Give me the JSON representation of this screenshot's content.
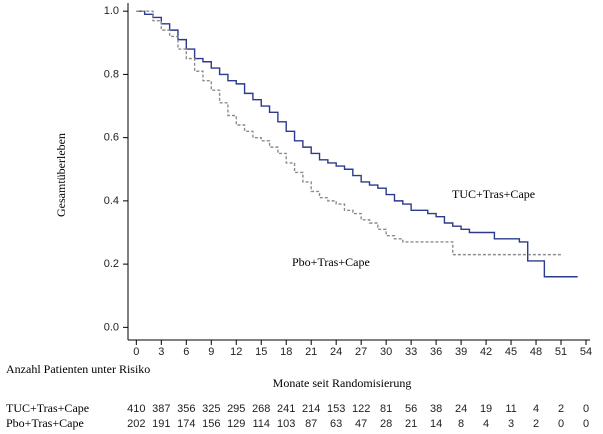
{
  "chart_data": {
    "type": "line",
    "step": true,
    "xlabel": "Monate seit Randomisierung",
    "ylabel": "Gesamtüberleben",
    "xlim": [
      -1,
      54
    ],
    "ylim": [
      -0.04,
      1.01
    ],
    "xticks": [
      0,
      3,
      6,
      9,
      12,
      15,
      18,
      21,
      24,
      27,
      30,
      33,
      36,
      39,
      42,
      45,
      48,
      51,
      54
    ],
    "yticks": [
      {
        "value": 1.0,
        "label": "1.0"
      },
      {
        "value": 0.8,
        "label": "0.8"
      },
      {
        "value": 0.6,
        "label": "0.6"
      },
      {
        "value": 0.4,
        "label": "0.4"
      },
      {
        "value": 0.2,
        "label": "0.2"
      },
      {
        "value": 0.0,
        "label": "0.0"
      }
    ],
    "series": [
      {
        "name": "TUC+Tras+Cape",
        "color": "#2b3a8c",
        "dash": "none",
        "x": [
          0,
          1,
          2,
          3,
          4,
          5,
          6,
          7,
          8,
          9,
          10,
          11,
          12,
          13,
          14,
          15,
          16,
          17,
          18,
          19,
          20,
          21,
          22,
          23,
          24,
          25,
          26,
          27,
          28,
          29,
          30,
          31,
          32,
          33,
          34,
          35,
          36,
          37,
          38,
          39,
          40,
          42,
          43,
          45,
          46,
          47,
          48,
          49,
          53
        ],
        "values": [
          1.0,
          0.99,
          0.98,
          0.96,
          0.94,
          0.91,
          0.88,
          0.85,
          0.84,
          0.82,
          0.8,
          0.78,
          0.77,
          0.74,
          0.72,
          0.7,
          0.68,
          0.65,
          0.62,
          0.59,
          0.57,
          0.55,
          0.53,
          0.52,
          0.51,
          0.5,
          0.48,
          0.46,
          0.45,
          0.44,
          0.42,
          0.4,
          0.39,
          0.37,
          0.37,
          0.36,
          0.35,
          0.33,
          0.32,
          0.31,
          0.3,
          0.3,
          0.28,
          0.28,
          0.27,
          0.21,
          0.21,
          0.16,
          0.16
        ]
      },
      {
        "name": "Pbo+Tras+Cape",
        "color": "#8c8c8c",
        "dash": "3 2",
        "x": [
          0,
          2,
          3,
          4,
          5,
          6,
          7,
          8,
          9,
          10,
          11,
          12,
          13,
          14,
          15,
          16,
          17,
          18,
          19,
          20,
          21,
          22,
          23,
          24,
          25,
          26,
          27,
          28,
          29,
          30,
          31,
          32,
          36,
          38,
          40,
          51
        ],
        "values": [
          1.0,
          0.97,
          0.94,
          0.92,
          0.88,
          0.85,
          0.81,
          0.78,
          0.75,
          0.71,
          0.67,
          0.64,
          0.62,
          0.6,
          0.59,
          0.57,
          0.55,
          0.52,
          0.49,
          0.46,
          0.43,
          0.41,
          0.4,
          0.39,
          0.37,
          0.36,
          0.34,
          0.33,
          0.31,
          0.29,
          0.28,
          0.27,
          0.27,
          0.23,
          0.23,
          0.23
        ]
      }
    ],
    "risk_table": {
      "title": "Anzahl Patienten unter Risiko",
      "rows": [
        {
          "name": "TUC+Tras+Cape",
          "values": [
            410,
            387,
            356,
            325,
            295,
            268,
            241,
            214,
            153,
            122,
            81,
            56,
            38,
            24,
            19,
            11,
            4,
            2,
            0
          ]
        },
        {
          "name": "Pbo+Tras+Cape",
          "values": [
            202,
            191,
            174,
            156,
            129,
            114,
            103,
            87,
            63,
            47,
            28,
            21,
            14,
            8,
            4,
            3,
            2,
            0,
            0
          ]
        }
      ]
    }
  }
}
